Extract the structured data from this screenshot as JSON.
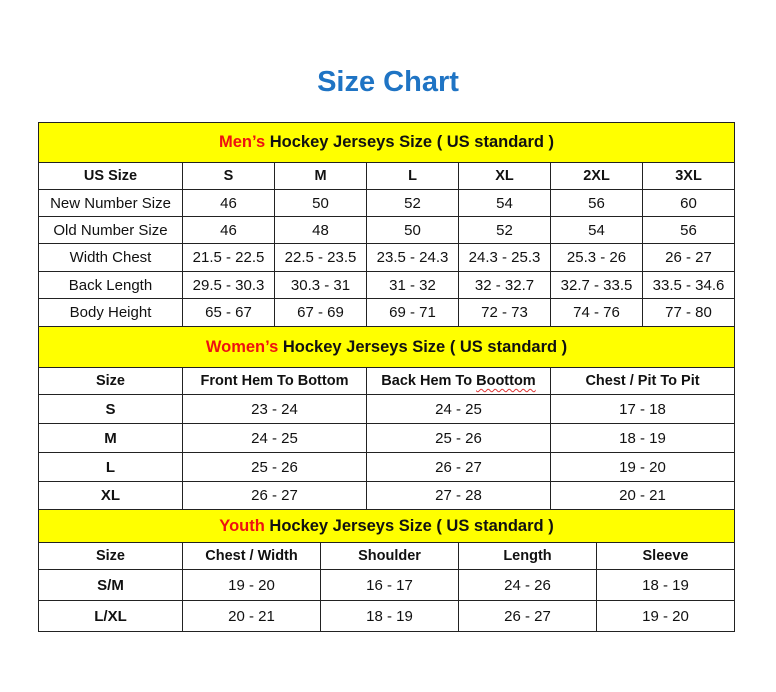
{
  "title": "Size Chart",
  "colors": {
    "title": "#1f74c4",
    "header_bg": "#ffff00",
    "highlight": "#ee1111"
  },
  "men": {
    "heading_highlight": "Men’s",
    "heading_rest": " Hockey Jerseys Size ( US standard )",
    "columns": [
      "US Size",
      "S",
      "M",
      "L",
      "XL",
      "2XL",
      "3XL"
    ],
    "rows": [
      [
        "New Number Size",
        "46",
        "50",
        "52",
        "54",
        "56",
        "60"
      ],
      [
        "Old Number Size",
        "46",
        "48",
        "50",
        "52",
        "54",
        "56"
      ],
      [
        "Width Chest",
        "21.5 - 22.5",
        "22.5 - 23.5",
        "23.5 - 24.3",
        "24.3 - 25.3",
        "25.3 - 26",
        "26 - 27"
      ],
      [
        "Back Length",
        "29.5 - 30.3",
        "30.3 - 31",
        "31 - 32",
        "32 - 32.7",
        "32.7 - 33.5",
        "33.5 - 34.6"
      ],
      [
        "Body Height",
        "65 - 67",
        "67 - 69",
        "69 - 71",
        "72 - 73",
        "74 - 76",
        "77 - 80"
      ]
    ]
  },
  "women": {
    "heading_highlight": "Women’s",
    "heading_rest": " Hockey Jerseys Size ( US standard )",
    "columns": [
      "Size",
      "Front Hem To Bottom",
      "Back Hem To Boottom",
      "Chest / Pit To Pit"
    ],
    "rows": [
      [
        "S",
        "23 - 24",
        "24 - 25",
        "17 - 18"
      ],
      [
        "M",
        "24 - 25",
        "25 - 26",
        "18 - 19"
      ],
      [
        "L",
        "25 - 26",
        "26 - 27",
        "19 - 20"
      ],
      [
        "XL",
        "26 - 27",
        "27 - 28",
        "20 - 21"
      ]
    ]
  },
  "youth": {
    "heading_highlight": "Youth",
    "heading_rest": " Hockey Jerseys Size ( US standard )",
    "columns": [
      "Size",
      "Chest / Width",
      "Shoulder",
      "Length",
      "Sleeve"
    ],
    "rows": [
      [
        "S/M",
        "19 - 20",
        "16 - 17",
        "24 - 26",
        "18 - 19"
      ],
      [
        "L/XL",
        "20 - 21",
        "18 - 19",
        "26 - 27",
        "19 - 20"
      ]
    ]
  }
}
